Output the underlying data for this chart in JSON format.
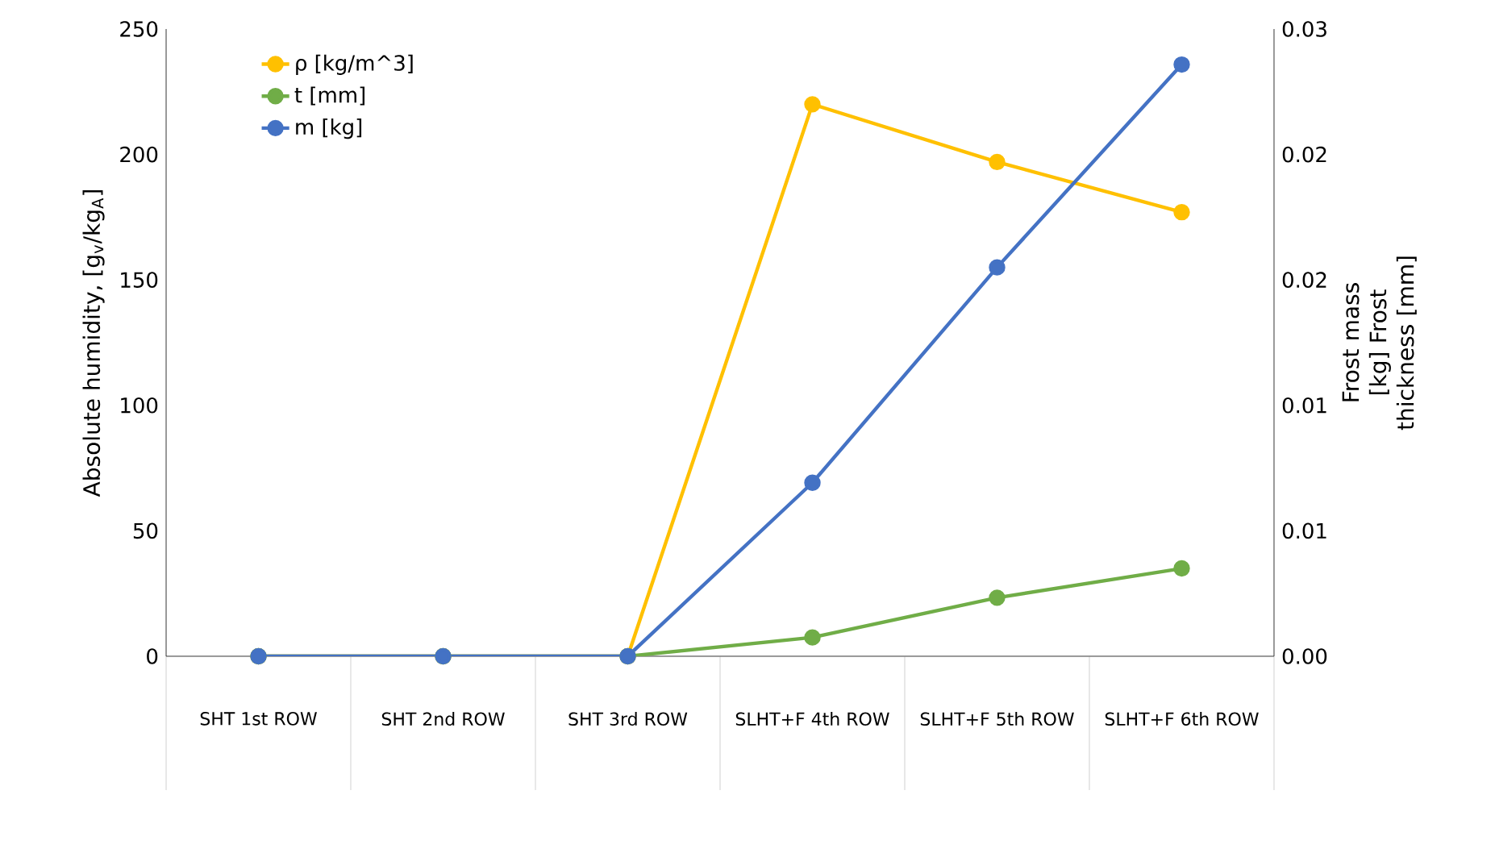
{
  "chart_data": {
    "type": "line",
    "categories": [
      "SHT 1st ROW",
      "SHT 2nd ROW",
      "SHT 3rd ROW",
      "SLHT+F 4th ROW",
      "SLHT+F 5th ROW",
      "SLHT+F 6th ROW"
    ],
    "ylabel": "Absolute humidity,  [g$_{v}$/kg$_{A}$]",
    "y2label": "Frost mass [kg] Frost thickness [mm]",
    "ylim": [
      0,
      250
    ],
    "yticks": [
      0,
      50,
      100,
      150,
      200,
      250
    ],
    "y2lim": [
      0,
      0.03
    ],
    "y2ticks": [
      {
        "value": 0,
        "label": "0.00"
      },
      {
        "value": 0.006,
        "label": "0.01"
      },
      {
        "value": 0.012,
        "label": "0.01"
      },
      {
        "value": 0.018,
        "label": "0.02"
      },
      {
        "value": 0.024,
        "label": "0.02"
      },
      {
        "value": 0.03,
        "label": "0.03"
      }
    ],
    "marker": "circle",
    "legend": "top left",
    "series": [
      {
        "name": "ρ [kg/m^3]",
        "color": "#ffc000",
        "values": [
          0,
          0,
          0,
          220,
          197,
          177
        ]
      },
      {
        "name": "t [mm]",
        "color": "#70ad47",
        "axis": "y2",
        "values": [
          0,
          0,
          0,
          0.0009,
          0.0028,
          0.0042
        ]
      },
      {
        "name": "m [kg]",
        "color": "#4472c4",
        "axis": "y2",
        "values": [
          0,
          0,
          0,
          0.0083,
          0.0186,
          0.0283
        ]
      }
    ]
  }
}
